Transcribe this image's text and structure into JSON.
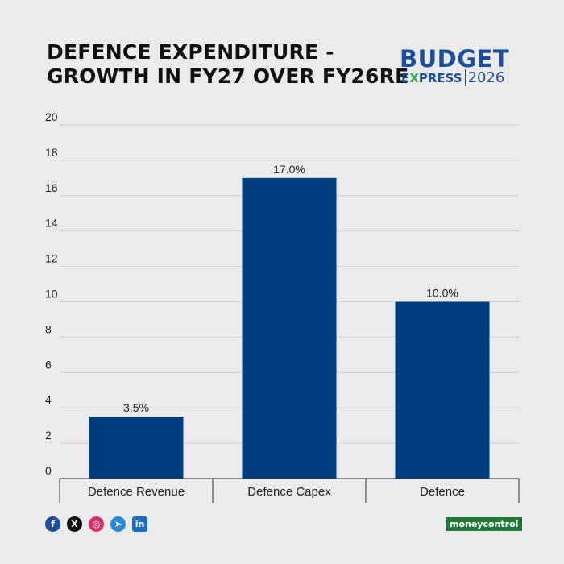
{
  "title": {
    "line1": "DEFENCE EXPENDITURE -",
    "line2": "GROWTH IN FY27 OVER FY26RE"
  },
  "brand": {
    "top": "BUDGET",
    "e": "E",
    "x": "X",
    "rest": "PRESS",
    "year": "2026"
  },
  "chart_data": {
    "type": "bar",
    "categories": [
      "Defence Revenue",
      "Defence Capex",
      "Defence"
    ],
    "values": [
      3.5,
      17.0,
      10.0
    ],
    "data_labels": [
      "3.5%",
      "17.0%",
      "10.0%"
    ],
    "yticks": [
      0,
      2,
      4,
      6,
      8,
      10,
      12,
      14,
      16,
      18,
      20
    ],
    "ylim": [
      0,
      20
    ],
    "grid": true,
    "bar_color": "#003f7f",
    "title": "",
    "xlabel": "",
    "ylabel": ""
  },
  "footer": {
    "icons": [
      {
        "name": "facebook-icon",
        "glyph": "f",
        "color": "#1d4e9a"
      },
      {
        "name": "x-twitter-icon",
        "glyph": "X",
        "color": "#111111"
      },
      {
        "name": "instagram-icon",
        "glyph": "◎",
        "color": "#d6336c"
      },
      {
        "name": "telegram-icon",
        "glyph": "➤",
        "color": "#2a8ad4"
      },
      {
        "name": "linkedin-icon",
        "glyph": "in",
        "color": "#1d6fb8"
      }
    ],
    "brand_badge": "moneycontrol"
  }
}
